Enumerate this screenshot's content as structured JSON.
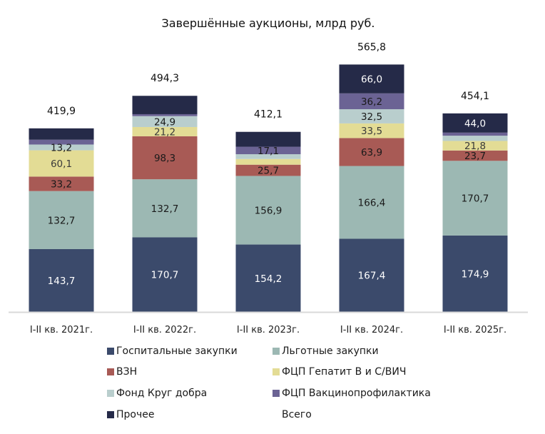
{
  "chart_data": {
    "type": "bar",
    "stacked": true,
    "title": "Завершённые аукционы, млрд руб.",
    "xlabel": "",
    "ylabel": "",
    "ylim": [
      0,
      600
    ],
    "grid": false,
    "legend_position": "bottom",
    "categories": [
      "I-II кв. 2021г.",
      "I-II кв. 2022г.",
      "I-II кв. 2023г.",
      "I-II кв. 2024г.",
      "I-II кв. 2025г."
    ],
    "series": [
      {
        "name": "Госпитальные закупки",
        "color": "#3b4a6b",
        "label_color": "#ffffff",
        "values": [
          143.7,
          170.7,
          154.2,
          167.4,
          174.9
        ],
        "labels": [
          "143,7",
          "170,7",
          "154,2",
          "167,4",
          "174,9"
        ]
      },
      {
        "name": "Льготные закупки",
        "color": "#9cb8b3",
        "label_color": "#1a1a1a",
        "values": [
          132.7,
          132.7,
          156.9,
          166.4,
          170.7
        ],
        "labels": [
          "132,7",
          "132,7",
          "156,9",
          "166,4",
          "170,7"
        ]
      },
      {
        "name": "ВЗН",
        "color": "#a85a55",
        "label_color": "#1a1a1a",
        "values": [
          33.2,
          98.3,
          25.7,
          63.9,
          23.7
        ],
        "labels": [
          "33,2",
          "98,3",
          "25,7",
          "63,9",
          "23,7"
        ]
      },
      {
        "name": "ФЦП Гепатит В и С/ВИЧ",
        "color": "#e3dc95",
        "label_color": "#3a3a3a",
        "values": [
          60.1,
          21.2,
          13.0,
          33.5,
          21.8
        ],
        "labels": [
          "60,1",
          "21,2",
          "",
          "33,5",
          "21,8"
        ]
      },
      {
        "name": "Фонд Круг добра",
        "color": "#b9cecd",
        "label_color": "#1a1a1a",
        "values": [
          13.2,
          24.9,
          11.0,
          32.5,
          12.0
        ],
        "labels": [
          "13,2",
          "24,9",
          "",
          "32,5",
          ""
        ]
      },
      {
        "name": "ФЦП Вакцинопрофилактика",
        "color": "#6b6394",
        "label_color": "#1a1a1a",
        "values": [
          11.0,
          4.5,
          17.1,
          36.2,
          7.0
        ],
        "labels": [
          "",
          "",
          "17,1",
          "36,2",
          ""
        ]
      },
      {
        "name": "Прочее",
        "color": "#252a48",
        "label_color": "#ffffff",
        "values": [
          26.0,
          42.0,
          34.0,
          66.0,
          44.0
        ],
        "labels": [
          "",
          "",
          "",
          "66,0",
          "44,0"
        ]
      }
    ],
    "totals": {
      "name": "Всего",
      "values": [
        419.9,
        494.3,
        412.1,
        565.8,
        454.1
      ],
      "labels": [
        "419,9",
        "494,3",
        "412,1",
        "565,8",
        "454,1"
      ]
    },
    "legend": [
      "Госпитальные закупки",
      "Льготные закупки",
      "ВЗН",
      "ФЦП Гепатит В и С/ВИЧ",
      "Фонд Круг добра",
      "ФЦП Вакцинопрофилактика",
      "Прочее",
      "Всего"
    ]
  }
}
